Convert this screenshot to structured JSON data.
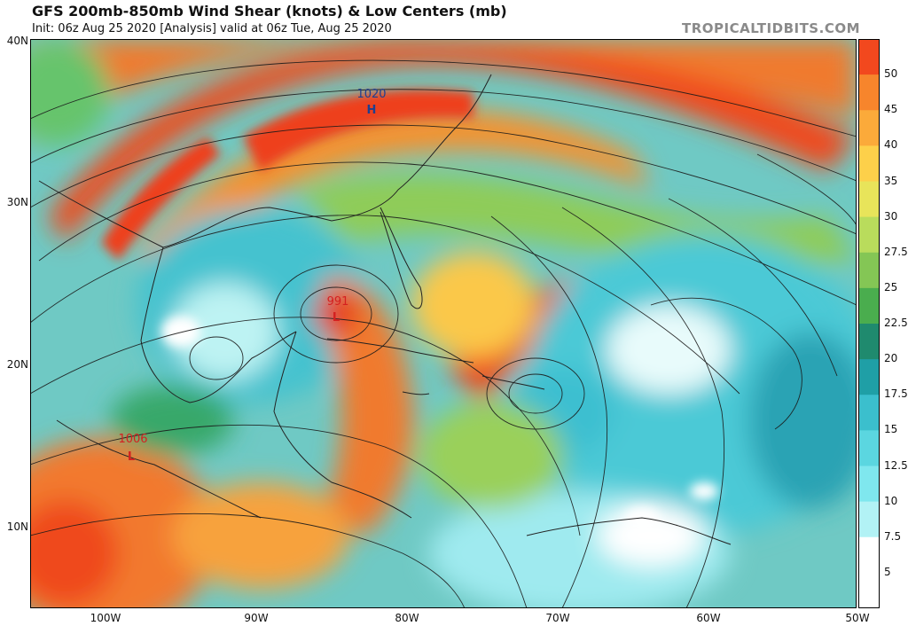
{
  "header": {
    "title": "GFS 200mb-850mb Wind Shear (knots) & Low Centers (mb)",
    "subtitle": "Init: 06z Aug 25 2020   [Analysis]   valid at 06z Tue, Aug 25 2020",
    "site": "TROPICALTIDBITS.COM"
  },
  "axes": {
    "lat_labels": [
      "40N",
      "30N",
      "20N",
      "10N"
    ],
    "lon_labels": [
      "100W",
      "90W",
      "80W",
      "70W",
      "60W",
      "50W"
    ]
  },
  "colorbar": {
    "labels": [
      "50",
      "45",
      "40",
      "35",
      "30",
      "27.5",
      "25",
      "22.5",
      "20",
      "17.5",
      "15",
      "12.5",
      "10",
      "7.5",
      "5"
    ],
    "colors": [
      "#f2481e",
      "#f7852c",
      "#fbaa3a",
      "#fdd04a",
      "#e8e45a",
      "#b9dc5c",
      "#84c655",
      "#4aad4e",
      "#1f8a6e",
      "#1f9fa6",
      "#3bbfcd",
      "#5bd6e0",
      "#7fe7ee",
      "#b2f2f5",
      "#ffffff"
    ]
  },
  "pressure_centers": [
    {
      "type": "high",
      "symbol": "H",
      "value": "1020",
      "color": "#1f3f8f"
    },
    {
      "type": "low",
      "symbol": "L",
      "value": "991",
      "color": "#d42020"
    },
    {
      "type": "low",
      "symbol": "L",
      "value": "1006",
      "color": "#d42020"
    }
  ]
}
